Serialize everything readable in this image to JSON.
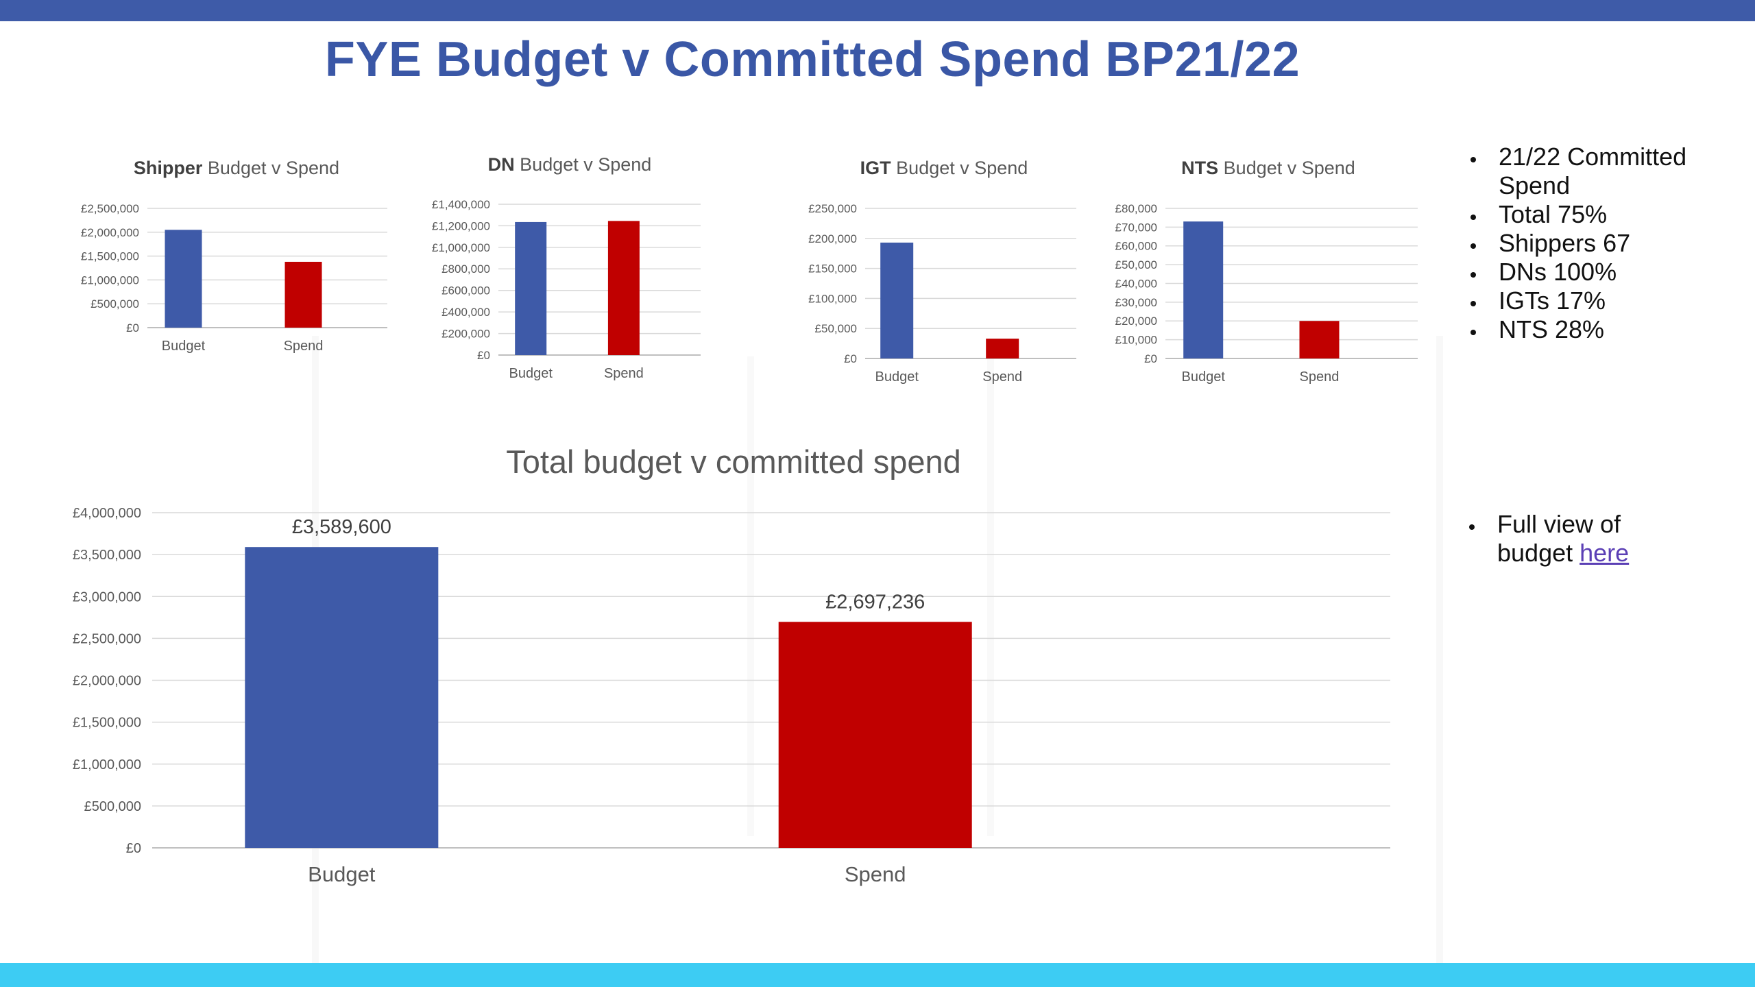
{
  "slide": {
    "title": "FYE Budget v Committed Spend BP21/22"
  },
  "colors": {
    "budget": "#3e5aa8",
    "spend": "#c00000",
    "axis_text": "#595959",
    "grid": "#d9d9d9"
  },
  "bullets_top": [
    "21/22 Committed Spend",
    "Total 75%",
    "Shippers 67",
    "DNs 100%",
    "IGTs 17%",
    "NTS 28%"
  ],
  "bullets_bottom": {
    "text": "Full view of budget ",
    "link": "here"
  },
  "chart_data": [
    {
      "id": "shipper",
      "type": "bar",
      "title_bold": "Shipper",
      "title_rest": " Budget v Spend",
      "categories": [
        "Budget",
        "Spend"
      ],
      "values": [
        2050000,
        1380000
      ],
      "ylim": [
        0,
        2500000
      ],
      "yticks": [
        0,
        500000,
        1000000,
        1500000,
        2000000,
        2500000
      ],
      "ytick_labels": [
        "£0",
        "£500,000",
        "£1,000,000",
        "£1,500,000",
        "£2,000,000",
        "£2,500,000"
      ],
      "grid": true
    },
    {
      "id": "dn",
      "type": "bar",
      "title_bold": "DN",
      "title_rest": " Budget v Spend",
      "categories": [
        "Budget",
        "Spend"
      ],
      "values": [
        1235000,
        1245000
      ],
      "ylim": [
        0,
        1400000
      ],
      "yticks": [
        0,
        200000,
        400000,
        600000,
        800000,
        1000000,
        1200000,
        1400000
      ],
      "ytick_labels": [
        "£0",
        "£200,000",
        "£400,000",
        "£600,000",
        "£800,000",
        "£1,000,000",
        "£1,200,000",
        "£1,400,000"
      ],
      "grid": true
    },
    {
      "id": "igt",
      "type": "bar",
      "title_bold": "IGT",
      "title_rest": " Budget v Spend",
      "categories": [
        "Budget",
        "Spend"
      ],
      "values": [
        193000,
        33000
      ],
      "ylim": [
        0,
        250000
      ],
      "yticks": [
        0,
        50000,
        100000,
        150000,
        200000,
        250000
      ],
      "ytick_labels": [
        "£0",
        "£50,000",
        "£100,000",
        "£150,000",
        "£200,000",
        "£250,000"
      ],
      "grid": true
    },
    {
      "id": "nts",
      "type": "bar",
      "title_bold": "NTS",
      "title_rest": " Budget v Spend",
      "categories": [
        "Budget",
        "Spend"
      ],
      "values": [
        73000,
        20000
      ],
      "ylim": [
        0,
        80000
      ],
      "yticks": [
        0,
        10000,
        20000,
        30000,
        40000,
        50000,
        60000,
        70000,
        80000
      ],
      "ytick_labels": [
        "£0",
        "£10,000",
        "£20,000",
        "£30,000",
        "£40,000",
        "£50,000",
        "£60,000",
        "£70,000",
        "£80,000"
      ],
      "grid": true
    },
    {
      "id": "total",
      "type": "bar",
      "title_bold": "",
      "title_rest": "Total budget v committed spend",
      "categories": [
        "Budget",
        "Spend"
      ],
      "values": [
        3589600,
        2697236
      ],
      "data_labels": [
        "£3,589,600",
        "£2,697,236"
      ],
      "ylim": [
        0,
        4000000
      ],
      "yticks": [
        0,
        500000,
        1000000,
        1500000,
        2000000,
        2500000,
        3000000,
        3500000,
        4000000
      ],
      "ytick_labels": [
        "£0",
        "£500,000",
        "£1,000,000",
        "£1,500,000",
        "£2,000,000",
        "£2,500,000",
        "£3,000,000",
        "£3,500,000",
        "£4,000,000"
      ],
      "grid": true
    }
  ]
}
